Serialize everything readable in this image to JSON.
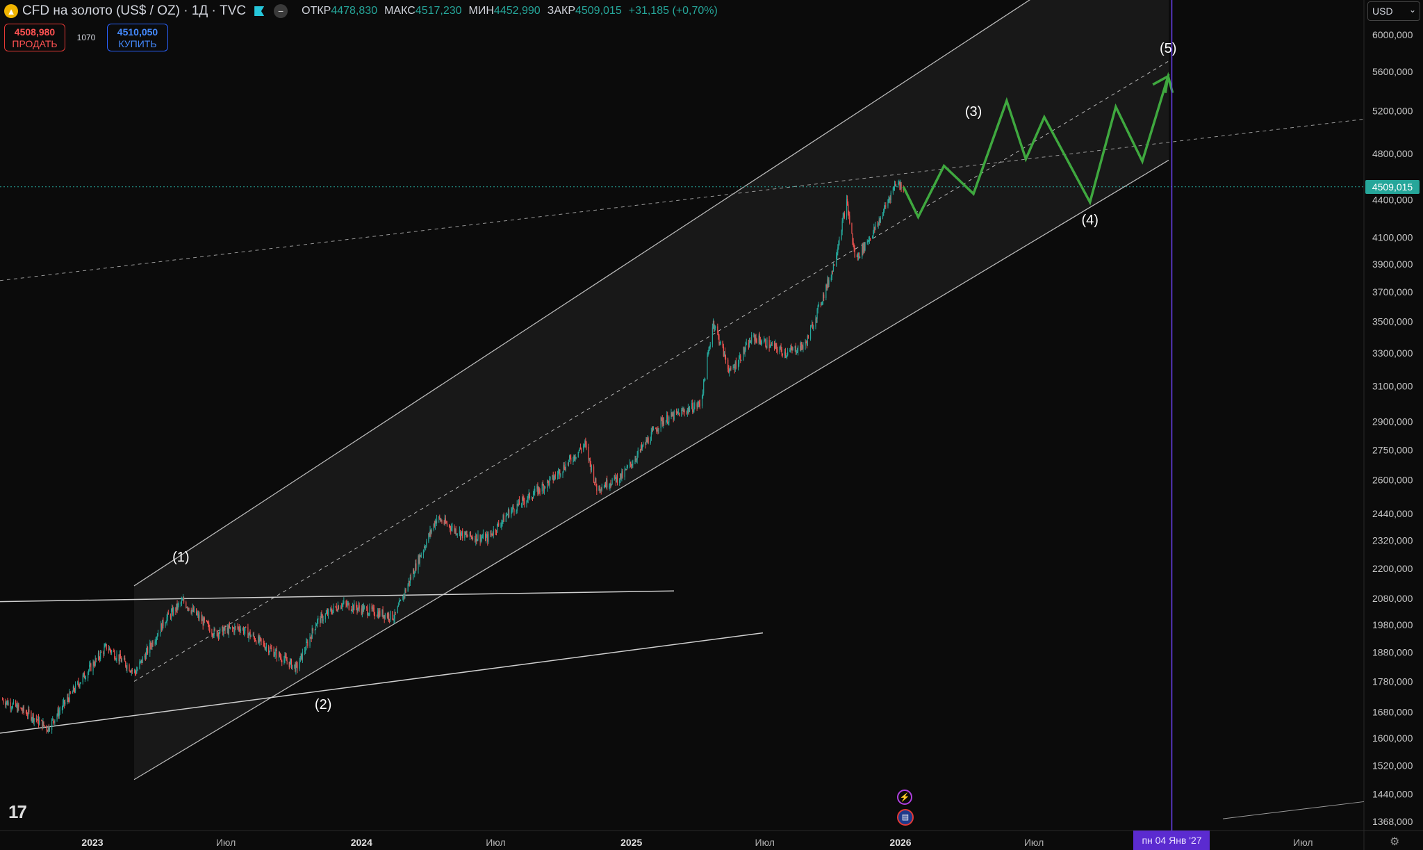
{
  "legend": {
    "title": "CFD на золото (US$ / OZ) · 1Д · TVC",
    "logo_icon": "gold-bar-icon",
    "open_label": "ОТКР",
    "open_value": "4478,830",
    "high_label": "МАКС",
    "high_value": "4517,230",
    "low_label": "МИН",
    "low_value": "4452,990",
    "close_label": "ЗАКР",
    "close_value": "4509,015",
    "change": "+31,185 (+0,70%)"
  },
  "trade": {
    "sell_price": "4508,980",
    "sell_label": "ПРОДАТЬ",
    "spread": "1070",
    "buy_price": "4510,050",
    "buy_label": "КУПИТЬ"
  },
  "currency": "USD",
  "last_price_tag": "4509,015",
  "crosshair_date": "пн 04 Янв '27",
  "colors": {
    "background": "#0b0b0b",
    "up": "#26a69a",
    "down": "#ef5350",
    "projection": "#3fa83f",
    "crosshair": "#6a3ff0"
  },
  "chart_data": {
    "type": "candlestick",
    "title": "CFD на золото (US$ / OZ) · 1Д · TVC",
    "y_scale": "log",
    "y_ticks": [
      "6000,000",
      "5600,000",
      "5200,000",
      "4800,000",
      "4400,000",
      "4100,000",
      "3900,000",
      "3700,000",
      "3500,000",
      "3300,000",
      "3100,000",
      "2900,000",
      "2750,000",
      "2600,000",
      "2440,000",
      "2320,000",
      "2200,000",
      "2080,000",
      "1980,000",
      "1880,000",
      "1780,000",
      "1680,000",
      "1600,000",
      "1520,000",
      "1440,000",
      "1368,000"
    ],
    "x_ticks": [
      "2023",
      "Июл",
      "2024",
      "Июл",
      "2025",
      "Июл",
      "2026",
      "Июл",
      "Июл"
    ],
    "x_range": [
      "2022-09-01",
      "2027-06-30"
    ],
    "price_path": [
      {
        "t": "2022-09-01",
        "p": 1720
      },
      {
        "t": "2022-10-10",
        "p": 1670
      },
      {
        "t": "2022-11-01",
        "p": 1630
      },
      {
        "t": "2022-12-15",
        "p": 1780
      },
      {
        "t": "2023-01-20",
        "p": 1900
      },
      {
        "t": "2023-02-28",
        "p": 1810
      },
      {
        "t": "2023-04-10",
        "p": 2000
      },
      {
        "t": "2023-05-04",
        "p": 2070
      },
      {
        "t": "2023-06-15",
        "p": 1950
      },
      {
        "t": "2023-07-20",
        "p": 1970
      },
      {
        "t": "2023-08-25",
        "p": 1900
      },
      {
        "t": "2023-10-05",
        "p": 1825
      },
      {
        "t": "2023-11-01",
        "p": 1990
      },
      {
        "t": "2023-12-04",
        "p": 2060
      },
      {
        "t": "2024-01-15",
        "p": 2030
      },
      {
        "t": "2024-02-15",
        "p": 2010
      },
      {
        "t": "2024-03-10",
        "p": 2180
      },
      {
        "t": "2024-04-12",
        "p": 2420
      },
      {
        "t": "2024-05-20",
        "p": 2340
      },
      {
        "t": "2024-06-20",
        "p": 2330
      },
      {
        "t": "2024-07-20",
        "p": 2450
      },
      {
        "t": "2024-09-15",
        "p": 2600
      },
      {
        "t": "2024-10-30",
        "p": 2780
      },
      {
        "t": "2024-11-15",
        "p": 2560
      },
      {
        "t": "2024-12-20",
        "p": 2620
      },
      {
        "t": "2025-02-10",
        "p": 2900
      },
      {
        "t": "2025-04-05",
        "p": 3000
      },
      {
        "t": "2025-04-22",
        "p": 3500
      },
      {
        "t": "2025-05-15",
        "p": 3180
      },
      {
        "t": "2025-06-15",
        "p": 3400
      },
      {
        "t": "2025-07-30",
        "p": 3300
      },
      {
        "t": "2025-08-25",
        "p": 3350
      },
      {
        "t": "2025-10-01",
        "p": 3860
      },
      {
        "t": "2025-10-20",
        "p": 4380
      },
      {
        "t": "2025-11-01",
        "p": 3930
      },
      {
        "t": "2025-12-01",
        "p": 4200
      },
      {
        "t": "2025-12-26",
        "p": 4550
      },
      {
        "t": "2026-01-05",
        "p": 4509
      }
    ],
    "projection_path": [
      {
        "t": "2026-01-05",
        "p": 4509
      },
      {
        "t": "2026-01-25",
        "p": 4260
      },
      {
        "t": "2026-03-01",
        "p": 4690
      },
      {
        "t": "2026-04-10",
        "p": 4450
      },
      {
        "t": "2026-05-25",
        "p": 5300
      },
      {
        "t": "2026-06-20",
        "p": 4750
      },
      {
        "t": "2026-07-15",
        "p": 5140
      },
      {
        "t": "2026-09-15",
        "p": 4380
      },
      {
        "t": "2026-10-20",
        "p": 5240
      },
      {
        "t": "2026-11-25",
        "p": 4730
      },
      {
        "t": "2026-12-30",
        "p": 5550
      },
      {
        "t": "2027-01-05",
        "p": 5380
      }
    ],
    "wave_labels": [
      {
        "text": "(1)",
        "t": "2023-05-01",
        "p": 2230
      },
      {
        "text": "(2)",
        "t": "2023-11-10",
        "p": 1690
      },
      {
        "text": "(3)",
        "t": "2026-04-10",
        "p": 5150
      },
      {
        "text": "(4)",
        "t": "2026-09-15",
        "p": 4200
      },
      {
        "text": "(5)",
        "t": "2026-12-30",
        "p": 5800
      }
    ],
    "last_price": 4509.015,
    "crosshair_time": "2027-01-04"
  }
}
